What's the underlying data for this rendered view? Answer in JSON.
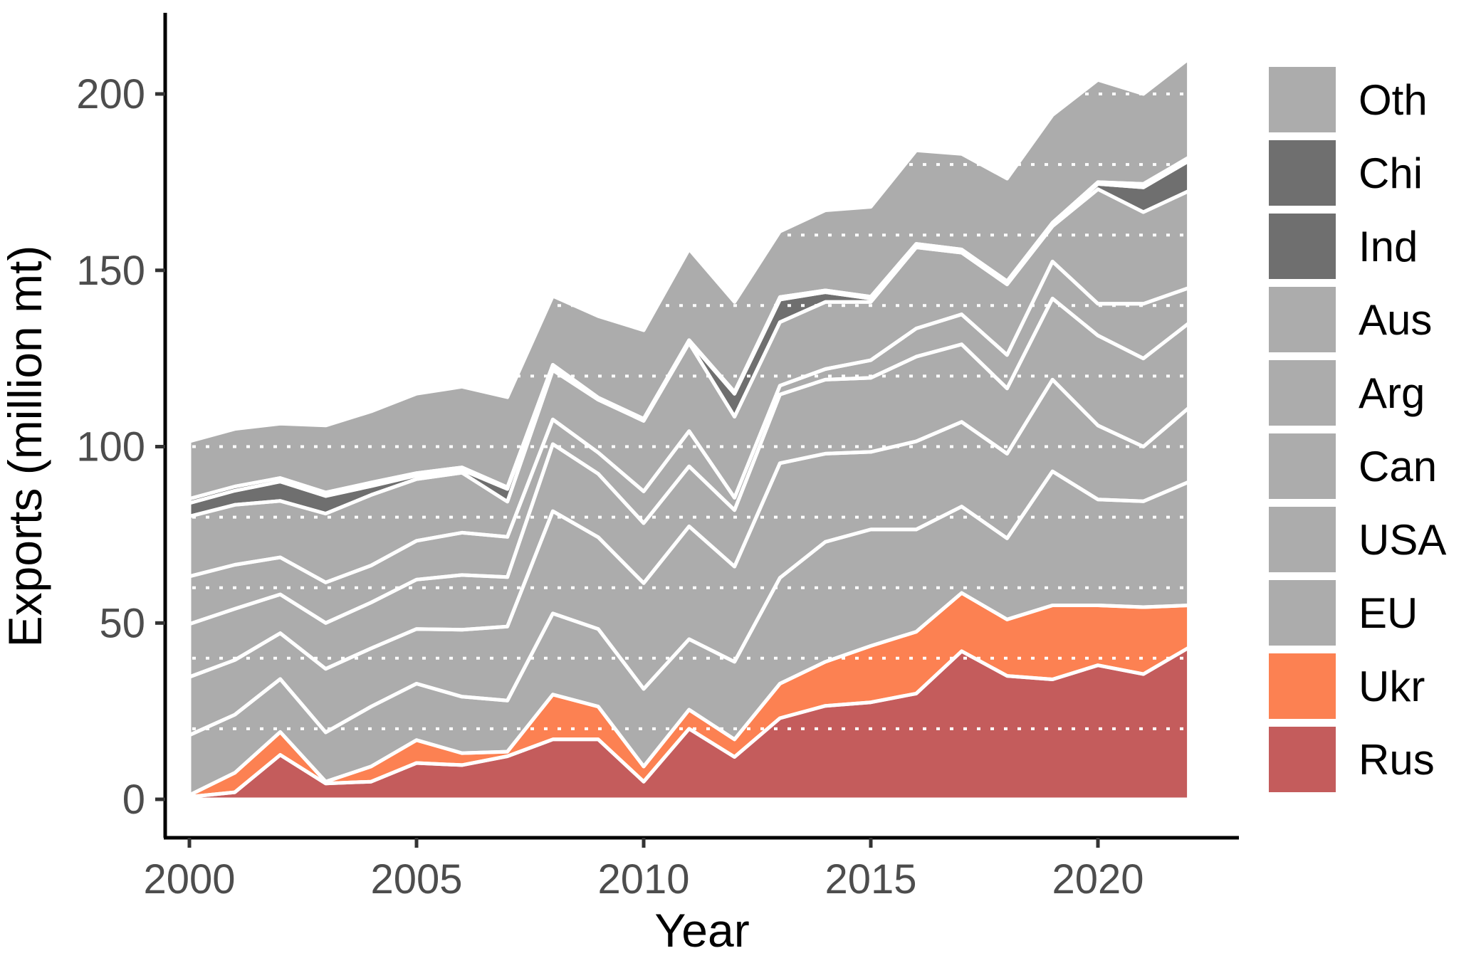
{
  "chart_data": {
    "type": "area",
    "stacked": true,
    "xlabel": "Year",
    "ylabel": "Exports (million mt)",
    "x_tick_labels": [
      "2000",
      "2005",
      "2010",
      "2015",
      "2020"
    ],
    "y_tick_labels": [
      "0",
      "50",
      "100",
      "150",
      "200"
    ],
    "x_ticks": [
      2000,
      2005,
      2010,
      2015,
      2020
    ],
    "y_ticks": [
      0,
      50,
      100,
      150,
      200
    ],
    "xlim": [
      2000,
      2022
    ],
    "ylim": [
      0,
      215
    ],
    "grid": {
      "interval": 20,
      "style": "dotted",
      "color": "#ffffff"
    },
    "legend_position": "right",
    "legend_order_top_to_bottom": [
      "Oth",
      "Chi",
      "Ind",
      "Aus",
      "Arg",
      "Can",
      "USA",
      "EU",
      "Ukr",
      "Rus"
    ],
    "years": [
      2000,
      2001,
      2002,
      2003,
      2004,
      2005,
      2006,
      2007,
      2008,
      2009,
      2010,
      2011,
      2012,
      2013,
      2014,
      2015,
      2016,
      2017,
      2018,
      2019,
      2020,
      2021,
      2022
    ],
    "series": [
      {
        "name": "Rus",
        "color": "#C45C5C",
        "values": [
          0.7,
          2,
          12.6,
          4.5,
          5,
          10.3,
          9.7,
          12.2,
          17,
          17,
          5,
          20,
          12,
          23,
          26.5,
          27.5,
          30,
          42,
          35,
          34,
          38,
          35.5,
          43
        ]
      },
      {
        "name": "Ukr",
        "color": "#FC8152",
        "values": [
          0.5,
          5.5,
          6.5,
          0.5,
          4.3,
          6.5,
          3.4,
          1.3,
          12.7,
          9.3,
          4.3,
          5.4,
          5,
          9.8,
          12.5,
          16,
          17.5,
          16.5,
          16,
          21,
          17,
          19,
          12
        ]
      },
      {
        "name": "EU",
        "color": "#ACACAC",
        "values": [
          17,
          16.5,
          15,
          14,
          17,
          16,
          16,
          14.5,
          23,
          22,
          22,
          20,
          22,
          30,
          34,
          33,
          29,
          24.5,
          23,
          38,
          30,
          30,
          35
        ]
      },
      {
        "name": "USA",
        "color": "#ACACAC",
        "values": [
          16.5,
          15.5,
          13,
          18,
          16.5,
          15.5,
          19,
          21,
          29,
          26,
          30,
          32,
          27,
          32.5,
          25,
          22,
          25,
          24,
          24,
          26,
          21,
          15.5,
          21
        ]
      },
      {
        "name": "Can",
        "color": "#ACACAC",
        "values": [
          15,
          14.5,
          11,
          13,
          13,
          14,
          15.5,
          14,
          19,
          18,
          17,
          17,
          16,
          19.5,
          21,
          21,
          24,
          22,
          18.5,
          23,
          25.5,
          25,
          24
        ]
      },
      {
        "name": "Arg",
        "color": "#ACACAC",
        "values": [
          13.5,
          12.5,
          10.5,
          11.5,
          10.5,
          11,
          12,
          11.4,
          7,
          6,
          9,
          10,
          3.5,
          2.5,
          3,
          5,
          8,
          8.5,
          9.5,
          10.5,
          9,
          15.5,
          10
        ]
      },
      {
        "name": "Aus",
        "color": "#ACACAC",
        "values": [
          17,
          17,
          16,
          19.5,
          20,
          17.5,
          17,
          10,
          14,
          15,
          20,
          25,
          23,
          18,
          19,
          16.5,
          23,
          17.5,
          20,
          10,
          32.5,
          26,
          27.5
        ]
      },
      {
        "name": "Ind",
        "color": "#6F6F6F",
        "values": [
          3.8,
          4,
          5.5,
          5,
          2.5,
          1,
          0.8,
          3.6,
          1,
          0.3,
          0.3,
          0.5,
          6.5,
          6.4,
          2.8,
          1,
          0.5,
          0.4,
          0.4,
          0.5,
          1.5,
          7,
          8.5
        ]
      },
      {
        "name": "Chi",
        "color": "#6F6F6F",
        "values": [
          1.2,
          1.2,
          1,
          1,
          1,
          0.7,
          0.7,
          0.5,
          0.5,
          0.3,
          0.3,
          0.3,
          0.5,
          0.7,
          0.5,
          0.5,
          0.5,
          0.5,
          0.5,
          0.5,
          0.5,
          1,
          1
        ]
      },
      {
        "name": "Oth",
        "color": "#ACACAC",
        "values": [
          16.3,
          16.3,
          15.4,
          19,
          20.2,
          22.5,
          22.9,
          25.5,
          19.5,
          23.1,
          25.1,
          25.8,
          25.5,
          18.6,
          22.7,
          25.5,
          26.5,
          27.1,
          29.1,
          30.5,
          29,
          25.5,
          28
        ]
      }
    ]
  }
}
